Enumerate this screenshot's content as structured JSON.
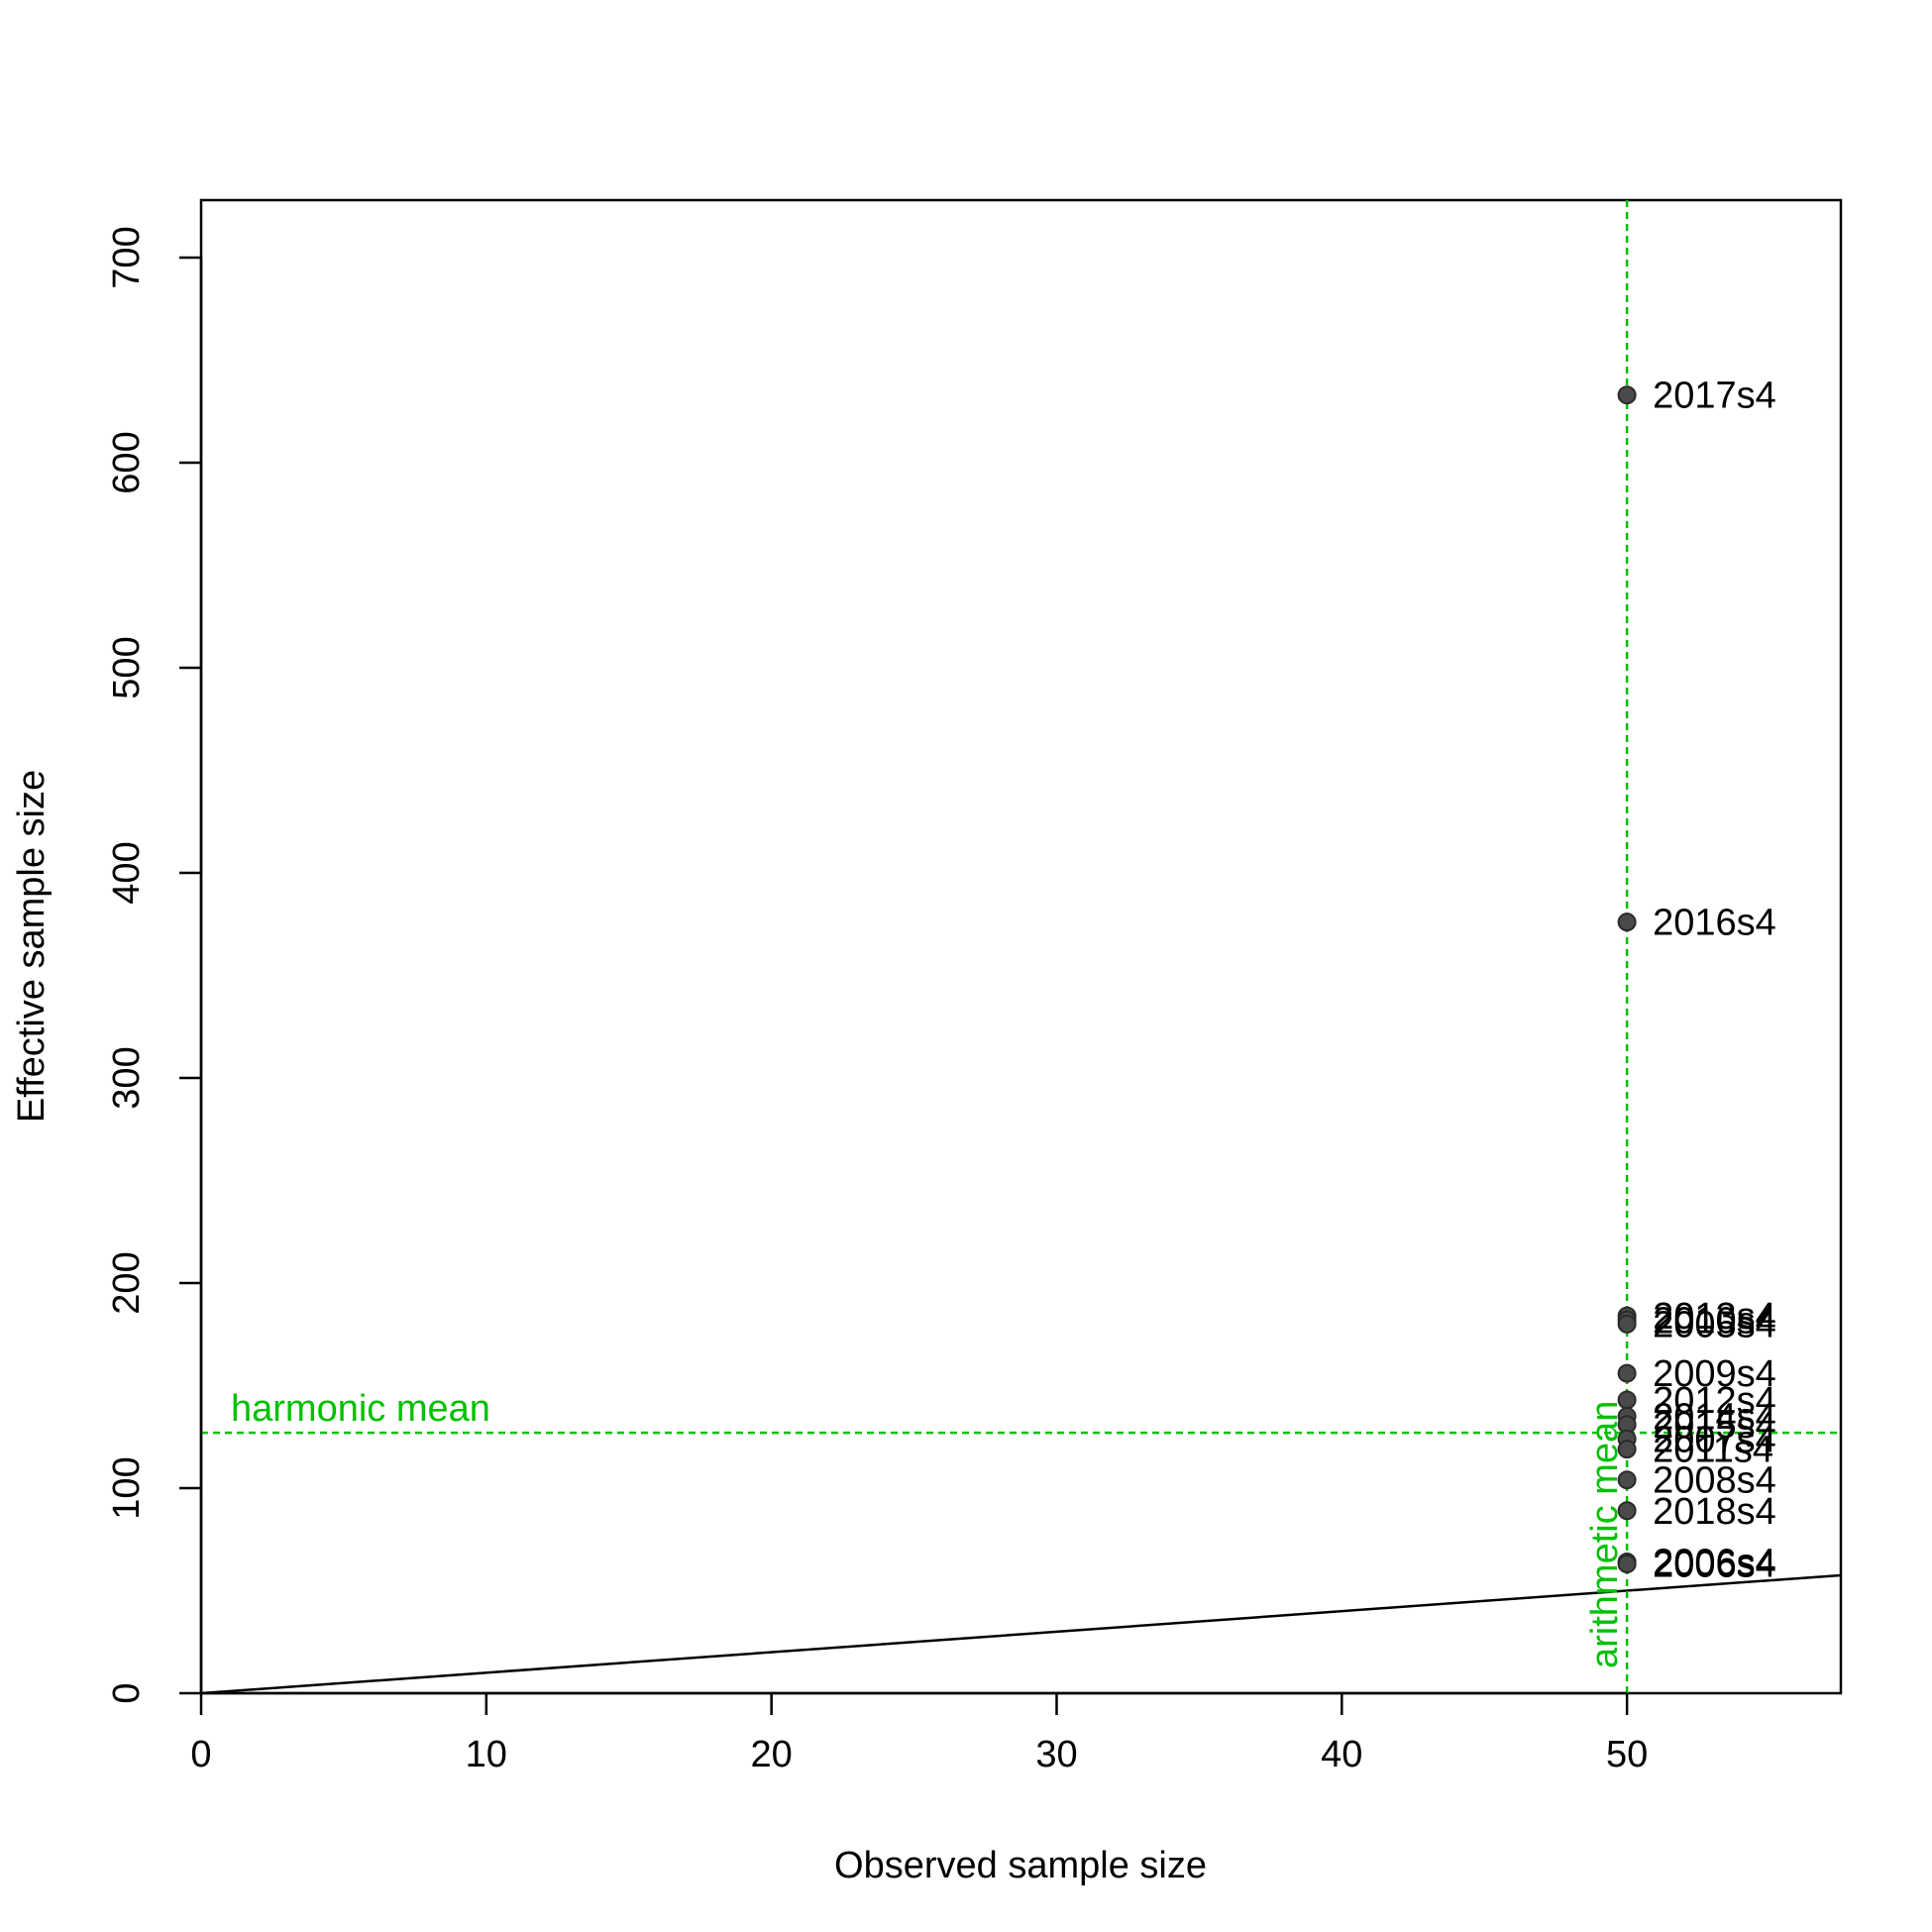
{
  "chart_data": {
    "type": "scatter",
    "xlabel": "Observed sample size",
    "ylabel": "Effective sample size",
    "xlim": [
      0,
      57.5
    ],
    "ylim": [
      0,
      700
    ],
    "xticks": [
      0,
      10,
      20,
      30,
      40,
      50
    ],
    "yticks": [
      0,
      100,
      200,
      300,
      400,
      500,
      600,
      700
    ],
    "grid": false,
    "points": [
      {
        "label": "2017s4",
        "x": 50,
        "y": 633
      },
      {
        "label": "2016s4",
        "x": 50,
        "y": 376
      },
      {
        "label": "2013s4",
        "x": 50,
        "y": 184
      },
      {
        "label": "2010s4",
        "x": 50,
        "y": 182
      },
      {
        "label": "2005s4",
        "x": 50,
        "y": 180
      },
      {
        "label": "2009s4",
        "x": 50,
        "y": 156
      },
      {
        "label": "2012s4",
        "x": 50,
        "y": 143
      },
      {
        "label": "2014s4",
        "x": 50,
        "y": 135
      },
      {
        "label": "2015s4",
        "x": 50,
        "y": 131
      },
      {
        "label": "2007s4",
        "x": 50,
        "y": 124
      },
      {
        "label": "2011s4",
        "x": 50,
        "y": 119
      },
      {
        "label": "2008s4",
        "x": 50,
        "y": 104
      },
      {
        "label": "2018s4",
        "x": 50,
        "y": 89
      },
      {
        "label": "2006s4",
        "x": 50,
        "y": 64
      },
      {
        "label": "2006s4",
        "x": 50,
        "y": 63
      }
    ],
    "one_to_one_line": {
      "from": [
        0,
        0
      ],
      "to": [
        57.5,
        57.5
      ]
    },
    "harmonic_mean": {
      "label": "harmonic mean",
      "y": 127
    },
    "arithmetic_mean": {
      "label": "arithmetic mean",
      "x": 50
    },
    "colors": {
      "points": "#4a4a4a",
      "mean_lines": "#00c000",
      "axes": "#000000"
    }
  }
}
